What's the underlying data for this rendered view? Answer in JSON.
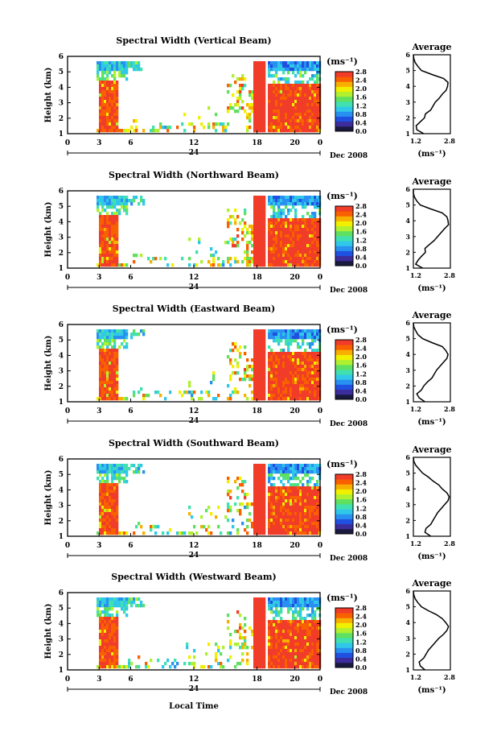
{
  "chart_data": [
    {
      "type": "heatmap",
      "title": "Spectral Width (Vertical Beam)",
      "ylabel": "Height (km)",
      "ylim": [
        1,
        6
      ],
      "yticks": [
        "1",
        "2",
        "3",
        "4",
        "5",
        "6"
      ],
      "xticks": [
        "0",
        "3",
        "6",
        "12",
        "18",
        "20",
        "0"
      ],
      "day_label": "24",
      "date_label": "Dec 2008",
      "colorbar_unit": "(ms⁻¹)",
      "colorbar_ticks": [
        "0.0",
        "0.4",
        "0.8",
        "1.2",
        "1.6",
        "2.0",
        "2.4",
        "2.8"
      ],
      "crange": [
        0,
        2.8
      ],
      "average": {
        "title": "Average",
        "xticks": [
          "1.2",
          "2.8"
        ],
        "xlabel": "(ms⁻¹)",
        "xlim": [
          1.2,
          2.8
        ],
        "ylim": [
          1,
          6
        ],
        "yticks": [
          "1",
          "2",
          "3",
          "4",
          "5",
          "6"
        ],
        "width": [
          1.65,
          1.35,
          1.32,
          1.5,
          1.68,
          1.72,
          1.95,
          2.05,
          2.15,
          2.32,
          2.45,
          2.62,
          2.68,
          2.7,
          2.5,
          2.0,
          1.55,
          1.4,
          1.28,
          1.22,
          1.2
        ],
        "height": [
          1.0,
          1.25,
          1.5,
          1.75,
          2.0,
          2.25,
          2.5,
          2.75,
          3.0,
          3.25,
          3.5,
          3.75,
          4.0,
          4.25,
          4.5,
          4.75,
          5.0,
          5.25,
          5.5,
          5.75,
          6.0
        ]
      }
    },
    {
      "type": "heatmap",
      "title": "Spectral Width (Northward Beam)",
      "ylabel": "Height (km)",
      "ylim": [
        1,
        6
      ],
      "yticks": [
        "1",
        "2",
        "3",
        "4",
        "5",
        "6"
      ],
      "xticks": [
        "0",
        "3",
        "6",
        "12",
        "18",
        "20",
        "0"
      ],
      "day_label": "24",
      "date_label": "Dec 2008",
      "colorbar_unit": "(ms⁻¹)",
      "colorbar_ticks": [
        "0.0",
        "0.4",
        "0.8",
        "1.2",
        "1.6",
        "2.0",
        "2.4",
        "2.8"
      ],
      "crange": [
        0,
        2.8
      ],
      "average": {
        "title": "Average",
        "xticks": [
          "1.2",
          "2.8"
        ],
        "xlabel": "(ms⁻¹)",
        "xlim": [
          1.2,
          2.8
        ],
        "ylim": [
          1,
          6
        ],
        "yticks": [
          "1",
          "2",
          "3",
          "4",
          "5",
          "6"
        ],
        "width": [
          1.6,
          1.3,
          1.4,
          1.55,
          1.72,
          1.7,
          1.9,
          2.1,
          2.25,
          2.4,
          2.55,
          2.72,
          2.7,
          2.65,
          2.45,
          1.95,
          1.5,
          1.35,
          1.25,
          1.2,
          1.2
        ],
        "height": [
          1.0,
          1.25,
          1.5,
          1.75,
          2.0,
          2.25,
          2.5,
          2.75,
          3.0,
          3.25,
          3.5,
          3.75,
          4.0,
          4.25,
          4.5,
          4.75,
          5.0,
          5.25,
          5.5,
          5.75,
          6.0
        ]
      }
    },
    {
      "type": "heatmap",
      "title": "Spectral Width (Eastward Beam)",
      "ylabel": "Height (km)",
      "ylim": [
        1,
        6
      ],
      "yticks": [
        "1",
        "2",
        "3",
        "4",
        "5",
        "6"
      ],
      "xticks": [
        "0",
        "3",
        "6",
        "12",
        "18",
        "20",
        "0"
      ],
      "day_label": "24",
      "date_label": "Dec 2008",
      "colorbar_unit": "(ms⁻¹)",
      "colorbar_ticks": [
        "0.0",
        "0.4",
        "0.8",
        "1.2",
        "1.6",
        "2.0",
        "2.4",
        "2.8"
      ],
      "crange": [
        0,
        2.8
      ],
      "average": {
        "title": "Average",
        "xticks": [
          "1.2",
          "2.8"
        ],
        "xlabel": "(ms⁻¹)",
        "xlim": [
          1.2,
          2.8
        ],
        "ylim": [
          1,
          6
        ],
        "yticks": [
          "1",
          "2",
          "3",
          "4",
          "5",
          "6"
        ],
        "width": [
          1.7,
          1.45,
          1.35,
          1.55,
          1.65,
          1.8,
          2.0,
          2.1,
          2.2,
          2.35,
          2.5,
          2.65,
          2.7,
          2.6,
          2.45,
          2.0,
          1.6,
          1.4,
          1.3,
          1.22,
          1.2
        ],
        "height": [
          1.0,
          1.25,
          1.5,
          1.75,
          2.0,
          2.25,
          2.5,
          2.75,
          3.0,
          3.25,
          3.5,
          3.75,
          4.0,
          4.25,
          4.5,
          4.75,
          5.0,
          5.25,
          5.5,
          5.75,
          6.0
        ]
      }
    },
    {
      "type": "heatmap",
      "title": "Spectral Width (Southward Beam)",
      "ylabel": "Height (km)",
      "ylim": [
        1,
        6
      ],
      "yticks": [
        "1",
        "2",
        "3",
        "4",
        "5",
        "6"
      ],
      "xticks": [
        "0",
        "3",
        "6",
        "12",
        "18",
        "20",
        "0"
      ],
      "day_label": "24",
      "date_label": "Dec 2008",
      "colorbar_unit": "(ms⁻¹)",
      "colorbar_ticks": [
        "0.0",
        "0.4",
        "0.8",
        "1.2",
        "1.6",
        "2.0",
        "2.4",
        "2.8"
      ],
      "crange": [
        0,
        2.8
      ],
      "average": {
        "title": "Average",
        "xticks": [
          "1.2",
          "2.8"
        ],
        "xlabel": "(ms⁻¹)",
        "xlim": [
          1.2,
          2.8
        ],
        "ylim": [
          1,
          6
        ],
        "yticks": [
          "1",
          "2",
          "3",
          "4",
          "5",
          "6"
        ],
        "width": [
          1.95,
          1.7,
          1.75,
          1.95,
          2.05,
          2.15,
          2.25,
          2.4,
          2.55,
          2.7,
          2.75,
          2.65,
          2.45,
          2.3,
          2.05,
          1.85,
          1.6,
          1.45,
          1.3,
          1.22,
          1.2
        ],
        "height": [
          1.0,
          1.25,
          1.5,
          1.75,
          2.0,
          2.25,
          2.5,
          2.75,
          3.0,
          3.25,
          3.5,
          3.75,
          4.0,
          4.25,
          4.5,
          4.75,
          5.0,
          5.25,
          5.5,
          5.75,
          6.0
        ]
      }
    },
    {
      "type": "heatmap",
      "title": "Spectral Width (Westward Beam)",
      "ylabel": "Height (km)",
      "ylim": [
        1,
        6
      ],
      "yticks": [
        "1",
        "2",
        "3",
        "4",
        "5",
        "6"
      ],
      "xticks": [
        "0",
        "3",
        "6",
        "12",
        "18",
        "20",
        "0"
      ],
      "day_label": "24",
      "date_label": "Dec 2008",
      "colorbar_unit": "(ms⁻¹)",
      "colorbar_ticks": [
        "0.0",
        "0.4",
        "0.8",
        "1.2",
        "1.6",
        "2.0",
        "2.4",
        "2.8"
      ],
      "crange": [
        0,
        2.8
      ],
      "average": {
        "title": "Average",
        "xticks": [
          "1.2",
          "2.8"
        ],
        "xlabel": "(ms⁻¹)",
        "xlim": [
          1.2,
          2.8
        ],
        "ylim": [
          1,
          6
        ],
        "yticks": [
          "1",
          "2",
          "3",
          "4",
          "5",
          "6"
        ],
        "width": [
          1.7,
          1.5,
          1.45,
          1.65,
          1.75,
          1.85,
          2.0,
          2.15,
          2.3,
          2.5,
          2.65,
          2.72,
          2.6,
          2.45,
          2.2,
          1.85,
          1.55,
          1.4,
          1.28,
          1.22,
          1.2
        ],
        "height": [
          1.0,
          1.25,
          1.5,
          1.75,
          2.0,
          2.25,
          2.5,
          2.75,
          3.0,
          3.25,
          3.5,
          3.75,
          4.0,
          4.25,
          4.5,
          4.75,
          5.0,
          5.25,
          5.5,
          5.75,
          6.0
        ]
      }
    }
  ],
  "bottom_xlabel": "Local Time",
  "colormap": [
    "#1a1a40",
    "#3c2c9c",
    "#2050e0",
    "#2890f0",
    "#30c8e8",
    "#40e0b0",
    "#60e060",
    "#b0f030",
    "#f0f000",
    "#f8b000",
    "#f86000",
    "#f03c28"
  ]
}
